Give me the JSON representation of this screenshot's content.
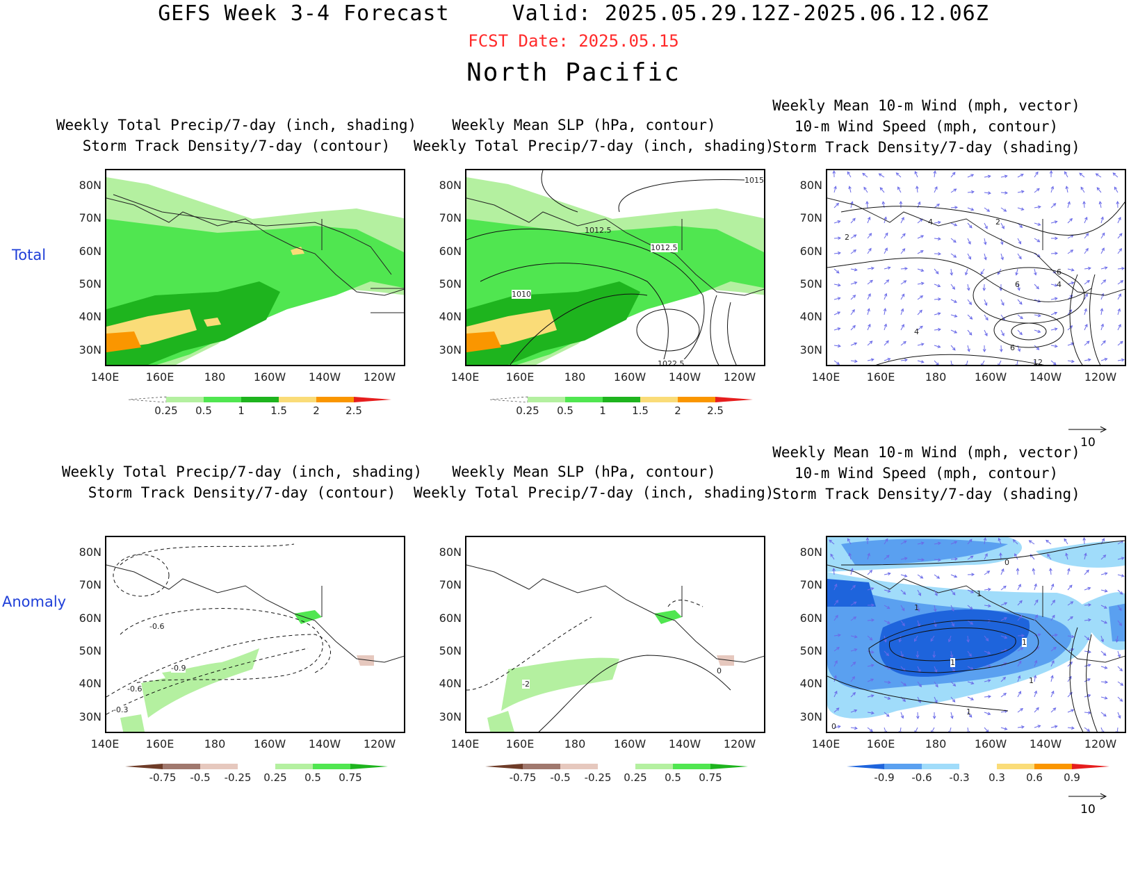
{
  "header": {
    "title": "GEFS Week 3-4 Forecast",
    "valid": "Valid: 2025.05.29.12Z-2025.06.12.06Z",
    "fcst_date": "FCST Date: 2025.05.15",
    "region": "North Pacific"
  },
  "rows": {
    "total": "Total",
    "anomaly": "Anomaly"
  },
  "titles": {
    "p1_l1": "Weekly Total Precip/7-day (inch, shading)",
    "p1_l2": "Storm Track Density/7-day (contour)",
    "p2_l1": "Weekly Mean SLP (hPa, contour)",
    "p2_l2": "Weekly Total Precip/7-day (inch, shading)",
    "p3_l1": "Weekly Mean 10-m Wind (mph, vector)",
    "p3_l2": "10-m Wind Speed (mph, contour)",
    "p3_l3": "Storm Track Density/7-day (shading)"
  },
  "axes": {
    "lat": [
      "80N",
      "70N",
      "60N",
      "50N",
      "40N",
      "30N"
    ],
    "lon": [
      "140E",
      "160E",
      "180",
      "160W",
      "140W",
      "120W"
    ]
  },
  "colorbars": {
    "precip_total": [
      "0.25",
      "0.5",
      "1",
      "1.5",
      "2",
      "2.5"
    ],
    "precip_anom": [
      "-0.75",
      "-0.5",
      "-0.25",
      "0.25",
      "0.5",
      "0.75"
    ],
    "storm_anom": [
      "-0.9",
      "-0.6",
      "-0.3",
      "0.3",
      "0.6",
      "0.9"
    ],
    "colors_total": [
      "#ffffff",
      "#b4f0a0",
      "#50e650",
      "#1eb41e",
      "#fadc78",
      "#fa9600",
      "#e61e1e"
    ],
    "colors_precip_anom": [
      "#6e3c28",
      "#a0786e",
      "#e6c8be",
      "#ffffff",
      "#b4f0a0",
      "#50e650",
      "#1eb41e"
    ],
    "colors_storm_anom": [
      "#1e64dc",
      "#5aa0f0",
      "#a0dcfa",
      "#ffffff",
      "#fadc78",
      "#fa9600",
      "#e61e1e"
    ]
  },
  "contour_labels": {
    "slp": [
      "1012.5",
      "1012.5",
      "1010",
      "1022.5",
      "1015"
    ],
    "wind_total": [
      "2",
      "4",
      "4",
      "2",
      "6",
      "6",
      "4",
      "6",
      "12"
    ],
    "storm_anom": [
      "-0.6",
      "-0.9",
      "-0.6",
      "-0.3"
    ],
    "slp_anom": [
      "-2",
      "0"
    ],
    "wind_anom": [
      "0",
      "1",
      "1",
      "1",
      "1",
      "1",
      "1",
      "0"
    ]
  },
  "vector_ref": "10"
}
